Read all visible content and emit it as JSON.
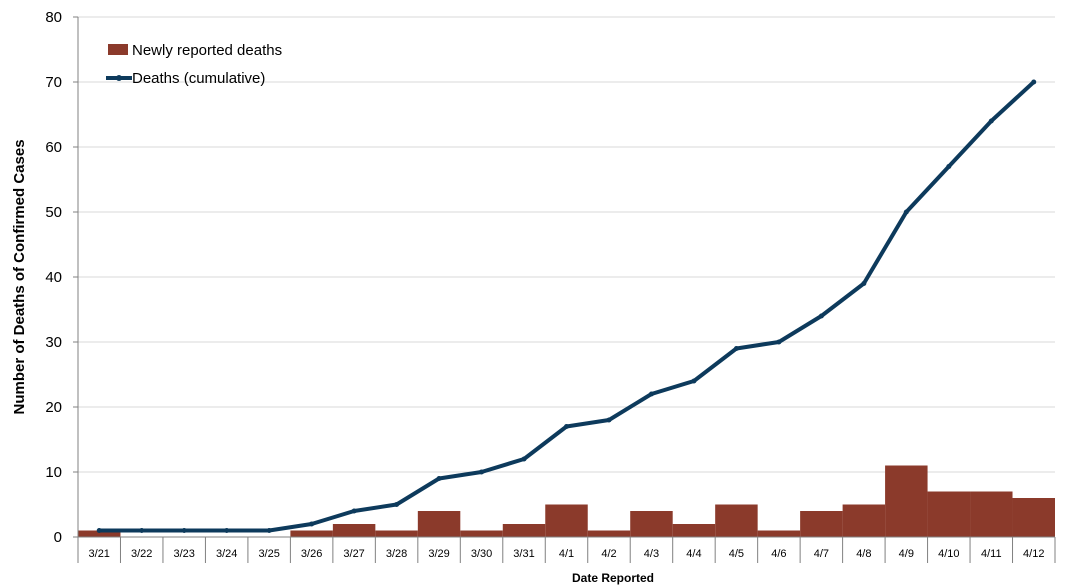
{
  "chart_data": {
    "type": "bar+line",
    "title": "",
    "xlabel": "Date Reported",
    "ylabel": "Number of Deaths of Confirmed Cases",
    "ylim": [
      0,
      80
    ],
    "yticks": [
      0,
      10,
      20,
      30,
      40,
      50,
      60,
      70,
      80
    ],
    "grid": true,
    "legend_position": "top-left",
    "categories": [
      "3/21",
      "3/22",
      "3/23",
      "3/24",
      "3/25",
      "3/26",
      "3/27",
      "3/28",
      "3/29",
      "3/30",
      "3/31",
      "4/1",
      "4/2",
      "4/3",
      "4/4",
      "4/5",
      "4/6",
      "4/7",
      "4/8",
      "4/9",
      "4/10",
      "4/11",
      "4/12"
    ],
    "series": [
      {
        "name": "Newly reported deaths",
        "type": "bar",
        "color": "#8b3a2b",
        "values": [
          1,
          0,
          0,
          0,
          0,
          1,
          2,
          1,
          4,
          1,
          2,
          5,
          1,
          4,
          2,
          5,
          1,
          4,
          5,
          11,
          7,
          7,
          6
        ]
      },
      {
        "name": "Deaths (cumulative)",
        "type": "line",
        "color": "#0d3a5c",
        "values": [
          1,
          1,
          1,
          1,
          1,
          2,
          4,
          5,
          9,
          10,
          12,
          17,
          18,
          22,
          24,
          29,
          30,
          34,
          39,
          50,
          57,
          64,
          70
        ]
      }
    ]
  }
}
